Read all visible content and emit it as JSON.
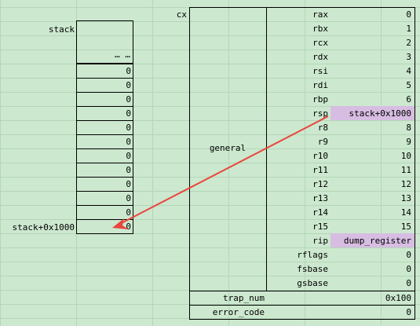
{
  "stack": {
    "label": "stack",
    "ellipsis": "… …",
    "cells": [
      "0",
      "0",
      "0",
      "0",
      "0",
      "0",
      "0",
      "0",
      "0",
      "0",
      "0"
    ],
    "bottom_label": "stack+0x1000",
    "bottom_value": "0"
  },
  "struct": {
    "name": "cx",
    "general_label": "general",
    "registers": [
      {
        "name": "rax",
        "value": "0"
      },
      {
        "name": "rbx",
        "value": "1"
      },
      {
        "name": "rcx",
        "value": "2"
      },
      {
        "name": "rdx",
        "value": "3"
      },
      {
        "name": "rsi",
        "value": "4"
      },
      {
        "name": "rdi",
        "value": "5"
      },
      {
        "name": "rbp",
        "value": "6"
      },
      {
        "name": "rsp",
        "value": "stack+0x1000",
        "highlight": true
      },
      {
        "name": "r8",
        "value": "8"
      },
      {
        "name": "r9",
        "value": "9"
      },
      {
        "name": "r10",
        "value": "10"
      },
      {
        "name": "r11",
        "value": "11"
      },
      {
        "name": "r12",
        "value": "12"
      },
      {
        "name": "r13",
        "value": "13"
      },
      {
        "name": "r14",
        "value": "14"
      },
      {
        "name": "r15",
        "value": "15"
      },
      {
        "name": "rip",
        "value": "dump_register",
        "highlight": true
      },
      {
        "name": "rflags",
        "value": "0"
      },
      {
        "name": "fsbase",
        "value": "0"
      },
      {
        "name": "gsbase",
        "value": "0"
      }
    ],
    "trap_num_label": "trap_num",
    "trap_num_value": "0x100",
    "error_code_label": "error_code",
    "error_code_value": "0"
  },
  "colors": {
    "sheet_bg": "#cce8cf",
    "highlight": "#d7bde2",
    "arrow": "#e8463c"
  }
}
